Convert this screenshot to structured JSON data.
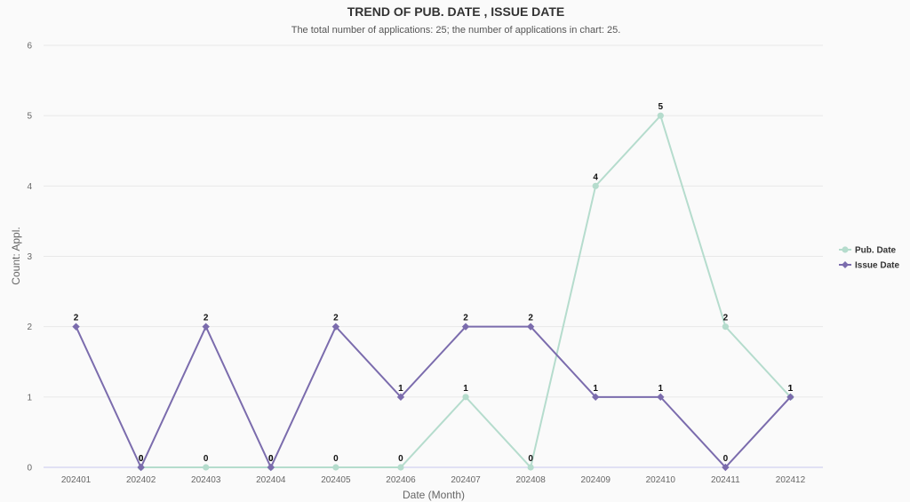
{
  "chart_data": {
    "type": "line",
    "title": "TREND OF PUB. DATE , ISSUE DATE",
    "subtitle": "The total number of applications: 25; the number of applications in chart: 25.",
    "xlabel": "Date (Month)",
    "ylabel": "Count: Appl.",
    "categories": [
      "202401",
      "202402",
      "202403",
      "202404",
      "202405",
      "202406",
      "202407",
      "202408",
      "202409",
      "202410",
      "202411",
      "202412"
    ],
    "ylim": [
      0,
      6
    ],
    "yticks": [
      "0",
      "1",
      "2",
      "3",
      "4",
      "5",
      "6"
    ],
    "grid": true,
    "legend_position": "right",
    "series": [
      {
        "name": "Pub. Date",
        "color": "#b5dccd",
        "marker": "circle",
        "values": [
          null,
          0,
          0,
          0,
          0,
          0,
          1,
          0,
          4,
          5,
          2,
          1
        ]
      },
      {
        "name": "Issue Date",
        "color": "#7b6cad",
        "marker": "diamond",
        "values": [
          2,
          0,
          2,
          0,
          2,
          1,
          2,
          2,
          1,
          1,
          0,
          1
        ]
      }
    ]
  }
}
